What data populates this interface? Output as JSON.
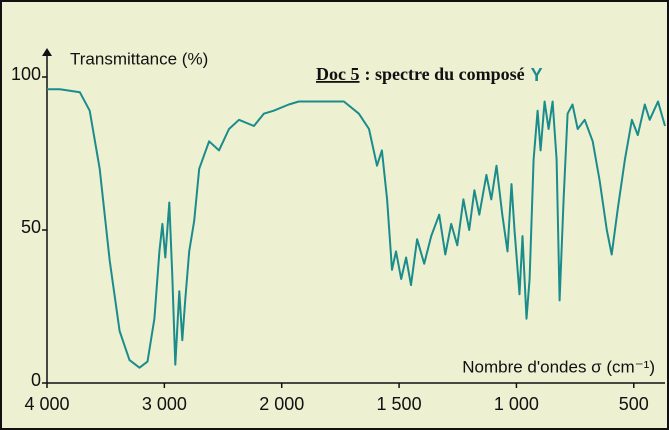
{
  "chart_data": {
    "type": "line",
    "doc_label": "Doc 5",
    "title": ": spectre du composé",
    "compound": "Y",
    "y_label": "Transmittance (%)",
    "x_label": "Nombre d'ondes σ (cm⁻¹)",
    "x_reversed": true,
    "x_break": 2000,
    "xlim": [
      4000,
      367
    ],
    "ylim": [
      0,
      110
    ],
    "xticks": [
      {
        "value": 4000,
        "label": "4 000"
      },
      {
        "value": 3000,
        "label": "3 000"
      },
      {
        "value": 2000,
        "label": "2 000"
      },
      {
        "value": 1500,
        "label": "1 500"
      },
      {
        "value": 1000,
        "label": "1 000"
      },
      500
    ],
    "yticks": [
      0,
      50,
      100
    ],
    "color": "#1b8c8c",
    "x": [
      4000,
      3890,
      3720,
      3636,
      3551,
      3466,
      3381,
      3297,
      3212,
      3144,
      3085,
      3042,
      3017,
      2992,
      2958,
      2932,
      2907,
      2873,
      2847,
      2822,
      2788,
      2746,
      2703,
      2619,
      2534,
      2449,
      2364,
      2237,
      2153,
      2068,
      1970,
      1927,
      1842,
      1735,
      1671,
      1628,
      1594,
      1573,
      1551,
      1530,
      1513,
      1491,
      1470,
      1449,
      1423,
      1393,
      1363,
      1329,
      1303,
      1278,
      1252,
      1226,
      1201,
      1179,
      1158,
      1128,
      1107,
      1085,
      1060,
      1038,
      1021,
      1008,
      987,
      974,
      957,
      944,
      927,
      910,
      897,
      880,
      863,
      846,
      829,
      816,
      799,
      782,
      761,
      739,
      709,
      675,
      645,
      615,
      594,
      568,
      538,
      508,
      483,
      453,
      432,
      397,
      367
    ],
    "values": [
      96,
      96,
      95,
      89,
      70,
      40,
      17,
      7.5,
      5,
      7,
      21,
      43,
      52,
      41,
      59,
      35,
      6,
      30,
      14,
      27,
      43,
      53,
      70,
      79,
      76,
      83,
      86,
      84,
      88,
      89,
      91,
      92,
      92,
      92,
      88,
      83,
      71,
      76,
      60,
      37,
      43,
      34,
      41,
      32,
      47,
      39,
      48,
      55,
      42,
      52,
      45,
      60,
      50,
      63,
      55,
      68,
      60,
      71,
      55,
      43,
      65,
      50,
      29,
      48,
      21,
      34,
      73,
      89,
      76,
      92,
      83,
      92,
      73,
      27,
      60,
      88,
      91,
      83,
      86,
      79,
      66,
      50,
      42,
      57,
      73,
      86,
      81,
      91,
      86,
      92,
      84
    ]
  }
}
